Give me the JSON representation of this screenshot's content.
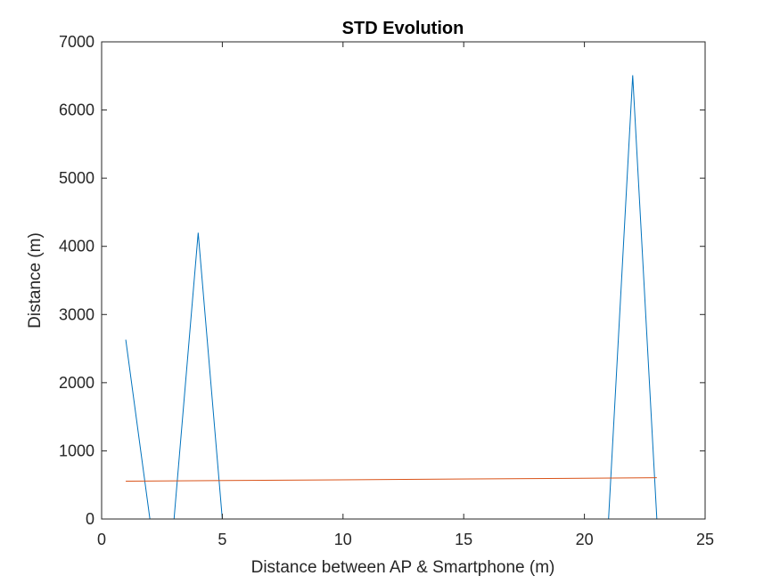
{
  "chart_data": {
    "type": "line",
    "title": "STD Evolution",
    "xlabel": "Distance between AP & Smartphone (m)",
    "ylabel": "Distance (m)",
    "xlim": [
      0,
      25
    ],
    "ylim": [
      0,
      7000
    ],
    "xticks": [
      0,
      5,
      10,
      15,
      20,
      25
    ],
    "yticks": [
      0,
      1000,
      2000,
      3000,
      4000,
      5000,
      6000,
      7000
    ],
    "grid": false,
    "series": [
      {
        "color": "#0072BD",
        "x": [
          1,
          2,
          3,
          4,
          5,
          6,
          7,
          8,
          9,
          10,
          11,
          12,
          13,
          14,
          15,
          16,
          17,
          18,
          19,
          20,
          21,
          22,
          23
        ],
        "y": [
          2630,
          0,
          0,
          4200,
          0,
          0,
          0,
          0,
          0,
          0,
          0,
          0,
          0,
          0,
          0,
          0,
          0,
          0,
          0,
          0,
          0,
          6510,
          0
        ]
      },
      {
        "color": "#D95319",
        "x": [
          1,
          23
        ],
        "y": [
          555,
          605
        ]
      }
    ]
  }
}
